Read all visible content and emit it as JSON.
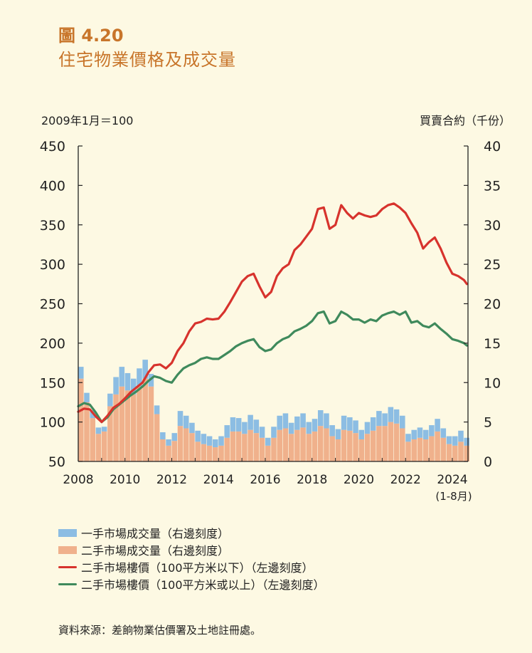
{
  "figure": {
    "number": "圖 4.20",
    "title": "住宅物業價格及成交量",
    "left_axis_unit": "2009年1月＝100",
    "right_axis_unit": "買賣合約（千份）",
    "source": "資料來源：差餉物業估價署及土地註冊處。"
  },
  "colors": {
    "primary_volume": "#8cbde3",
    "secondary_volume": "#f0b18c",
    "price_small": "#d7332d",
    "price_large": "#3f8a5c",
    "title_accent": "#c8752a"
  },
  "chart_data": {
    "type": "bar",
    "x_range": [
      2008,
      2024.67
    ],
    "x_ticks": [
      "2008",
      "2010",
      "2012",
      "2014",
      "2016",
      "2018",
      "2020",
      "2022",
      "2024"
    ],
    "x_tick_note": "(1-8月)",
    "ylim_left": [
      50,
      450
    ],
    "yticks_left": [
      "450",
      "400",
      "350",
      "300",
      "250",
      "200",
      "150",
      "100",
      "50"
    ],
    "ylim_right": [
      0,
      40
    ],
    "yticks_right": [
      "40",
      "35",
      "30",
      "25",
      "20",
      "15",
      "10",
      "5",
      "0"
    ],
    "legend": [
      {
        "label": "一手市場成交量（右邊刻度）",
        "key": "primary_volume",
        "kind": "box"
      },
      {
        "label": "二手市場成交量（右邊刻度）",
        "key": "secondary_volume",
        "kind": "box"
      },
      {
        "label": "二手市場樓價（100平方米以下）（左邊刻度）",
        "key": "price_small",
        "kind": "line"
      },
      {
        "label": "二手市場樓價（100平方米或以上）（左邊刻度）",
        "key": "price_large",
        "kind": "line"
      }
    ],
    "series_volume": {
      "axis": "right",
      "stacked": true,
      "x": [
        2008.0,
        2008.25,
        2008.5,
        2008.75,
        2009.0,
        2009.25,
        2009.5,
        2009.75,
        2010.0,
        2010.25,
        2010.5,
        2010.75,
        2011.0,
        2011.25,
        2011.5,
        2011.75,
        2012.0,
        2012.25,
        2012.5,
        2012.75,
        2013.0,
        2013.25,
        2013.5,
        2013.75,
        2014.0,
        2014.25,
        2014.5,
        2014.75,
        2015.0,
        2015.25,
        2015.5,
        2015.75,
        2016.0,
        2016.25,
        2016.5,
        2016.75,
        2017.0,
        2017.25,
        2017.5,
        2017.75,
        2018.0,
        2018.25,
        2018.5,
        2018.75,
        2019.0,
        2019.25,
        2019.5,
        2019.75,
        2020.0,
        2020.25,
        2020.5,
        2020.75,
        2021.0,
        2021.25,
        2021.5,
        2021.75,
        2022.0,
        2022.25,
        2022.5,
        2022.75,
        2023.0,
        2023.25,
        2023.5,
        2023.75,
        2024.0,
        2024.25,
        2024.5
      ],
      "primary": [
        1.5,
        1.2,
        1.0,
        0.8,
        0.6,
        1.6,
        2.2,
        2.5,
        2.2,
        2.0,
        2.3,
        2.4,
        1.6,
        1.1,
        0.9,
        0.8,
        1.0,
        1.9,
        1.6,
        1.3,
        1.4,
        1.3,
        1.2,
        1.0,
        1.2,
        1.6,
        1.8,
        1.7,
        1.5,
        1.9,
        1.7,
        1.4,
        1.0,
        1.4,
        1.8,
        1.9,
        1.4,
        1.7,
        1.8,
        1.5,
        1.6,
        2.0,
        1.9,
        1.4,
        1.3,
        1.8,
        1.7,
        1.6,
        1.2,
        1.5,
        1.7,
        1.9,
        1.6,
        1.9,
        1.8,
        1.6,
        1.0,
        1.2,
        1.3,
        1.2,
        1.4,
        1.6,
        1.2,
        1.0,
        1.2,
        1.4,
        1.0
      ],
      "secondary": [
        10.5,
        7.5,
        5.5,
        3.5,
        3.8,
        7.0,
        8.5,
        9.5,
        9.0,
        8.5,
        9.5,
        10.5,
        9.5,
        6.0,
        2.8,
        2.0,
        2.6,
        4.5,
        4.2,
        3.6,
        2.5,
        2.2,
        2.0,
        1.8,
        2.0,
        3.0,
        3.8,
        3.8,
        3.5,
        4.0,
        3.6,
        3.0,
        2.0,
        3.0,
        4.0,
        4.2,
        3.5,
        4.0,
        4.3,
        3.5,
        3.8,
        4.5,
        4.2,
        3.2,
        2.8,
        4.0,
        3.9,
        3.6,
        2.8,
        3.5,
        3.9,
        4.5,
        4.5,
        5.0,
        4.8,
        4.2,
        2.5,
        2.8,
        3.0,
        2.8,
        3.2,
        3.8,
        3.0,
        2.2,
        2.0,
        2.5,
        2.0
      ]
    },
    "series_price_small": {
      "axis": "left",
      "x": [
        2008.0,
        2008.25,
        2008.5,
        2008.75,
        2009.0,
        2009.25,
        2009.5,
        2009.75,
        2010.0,
        2010.25,
        2010.5,
        2010.75,
        2011.0,
        2011.25,
        2011.5,
        2011.75,
        2012.0,
        2012.25,
        2012.5,
        2012.75,
        2013.0,
        2013.25,
        2013.5,
        2013.75,
        2014.0,
        2014.25,
        2014.5,
        2014.75,
        2015.0,
        2015.25,
        2015.5,
        2015.75,
        2016.0,
        2016.25,
        2016.5,
        2016.75,
        2017.0,
        2017.25,
        2017.5,
        2017.75,
        2018.0,
        2018.25,
        2018.5,
        2018.75,
        2019.0,
        2019.25,
        2019.5,
        2019.75,
        2020.0,
        2020.25,
        2020.5,
        2020.75,
        2021.0,
        2021.25,
        2021.5,
        2021.75,
        2022.0,
        2022.25,
        2022.5,
        2022.75,
        2023.0,
        2023.25,
        2023.5,
        2023.75,
        2024.0,
        2024.25,
        2024.5,
        2024.62
      ],
      "y": [
        113,
        117,
        116,
        107,
        100,
        108,
        118,
        123,
        130,
        138,
        144,
        150,
        163,
        172,
        173,
        168,
        175,
        190,
        200,
        215,
        225,
        227,
        231,
        230,
        231,
        240,
        252,
        265,
        278,
        285,
        288,
        272,
        258,
        265,
        285,
        295,
        300,
        318,
        325,
        335,
        345,
        370,
        372,
        345,
        350,
        375,
        365,
        358,
        365,
        362,
        360,
        362,
        370,
        375,
        377,
        372,
        365,
        352,
        340,
        320,
        328,
        334,
        320,
        302,
        288,
        285,
        280,
        275
      ]
    },
    "series_price_large": {
      "axis": "left",
      "x": [
        2008.0,
        2008.25,
        2008.5,
        2008.75,
        2009.0,
        2009.25,
        2009.5,
        2009.75,
        2010.0,
        2010.25,
        2010.5,
        2010.75,
        2011.0,
        2011.25,
        2011.5,
        2011.75,
        2012.0,
        2012.25,
        2012.5,
        2012.75,
        2013.0,
        2013.25,
        2013.5,
        2013.75,
        2014.0,
        2014.25,
        2014.5,
        2014.75,
        2015.0,
        2015.25,
        2015.5,
        2015.75,
        2016.0,
        2016.25,
        2016.5,
        2016.75,
        2017.0,
        2017.25,
        2017.5,
        2017.75,
        2018.0,
        2018.25,
        2018.5,
        2018.75,
        2019.0,
        2019.25,
        2019.5,
        2019.75,
        2020.0,
        2020.25,
        2020.5,
        2020.75,
        2021.0,
        2021.25,
        2021.5,
        2021.75,
        2022.0,
        2022.25,
        2022.5,
        2022.75,
        2023.0,
        2023.25,
        2023.5,
        2023.75,
        2024.0,
        2024.25,
        2024.5,
        2024.62
      ],
      "y": [
        120,
        124,
        122,
        112,
        100,
        106,
        116,
        122,
        128,
        134,
        139,
        145,
        152,
        158,
        156,
        152,
        150,
        160,
        168,
        172,
        175,
        180,
        182,
        180,
        180,
        185,
        190,
        196,
        200,
        203,
        205,
        195,
        190,
        192,
        200,
        205,
        208,
        215,
        218,
        222,
        228,
        238,
        240,
        225,
        228,
        240,
        236,
        230,
        230,
        226,
        230,
        228,
        235,
        238,
        240,
        236,
        240,
        226,
        228,
        222,
        220,
        225,
        218,
        212,
        205,
        203,
        200,
        197
      ]
    }
  }
}
